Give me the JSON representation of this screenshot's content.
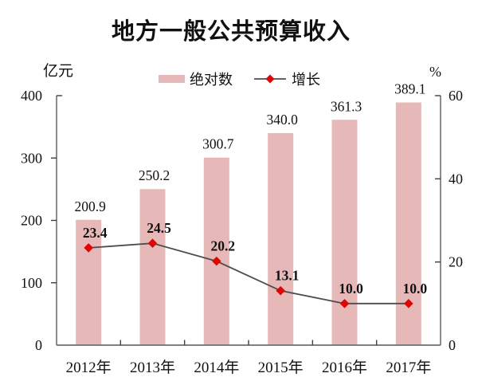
{
  "title": "地方一般公共预算收入",
  "units": {
    "left": "亿元",
    "right": "%"
  },
  "legend": {
    "bar_label": "绝对数",
    "line_label": "增长"
  },
  "colors": {
    "bar": "#e6b9b8",
    "marker": "#e00505",
    "line": "#4d4d4d",
    "axis": "#6e6e6e",
    "tick": "#3f3f3f",
    "text": "#111111"
  },
  "chart_data": {
    "type": "bar",
    "subtype": "bar+line combo, dual axis",
    "title": "地方一般公共预算收入",
    "categories": [
      "2012年",
      "2013年",
      "2014年",
      "2015年",
      "2016年",
      "2017年"
    ],
    "series": [
      {
        "name": "绝对数",
        "type": "bar",
        "axis": "left",
        "unit": "亿元",
        "values": [
          200.9,
          250.2,
          300.7,
          340.0,
          361.3,
          389.1
        ]
      },
      {
        "name": "增长",
        "type": "line",
        "axis": "right",
        "unit": "%",
        "values": [
          23.4,
          24.5,
          20.2,
          13.1,
          10.0,
          10.0
        ]
      }
    ],
    "left_axis": {
      "label": "亿元",
      "min": 0,
      "max": 400,
      "tick_step": 100,
      "ticks": [
        0,
        100,
        200,
        300,
        400
      ]
    },
    "right_axis": {
      "label": "%",
      "min": 0,
      "max": 60,
      "tick_step": 20,
      "ticks": [
        0,
        20,
        40,
        60
      ]
    },
    "grid": false,
    "legend_position": "top",
    "data_labels": true
  }
}
